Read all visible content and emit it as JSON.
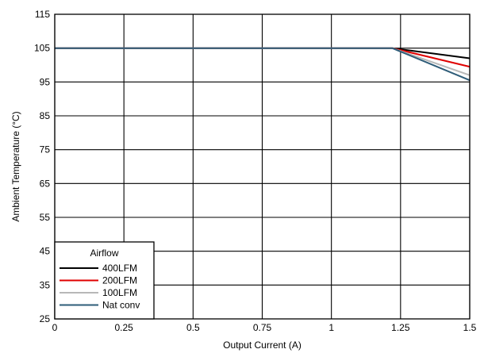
{
  "chart_data": {
    "type": "line",
    "title": "",
    "xlabel": "Output Current (A)",
    "ylabel": "Ambient Temperature (°C)",
    "xlim": [
      0,
      1.5
    ],
    "ylim": [
      25,
      115
    ],
    "xticks": [
      0,
      0.25,
      0.5,
      0.75,
      1,
      1.25,
      1.5
    ],
    "xtick_labels": [
      "0",
      "0.25",
      "0.5",
      "0.75",
      "1",
      "1.25",
      "1.5"
    ],
    "yticks": [
      25,
      35,
      45,
      55,
      65,
      75,
      85,
      95,
      105,
      115
    ],
    "ytick_labels": [
      "25",
      "35",
      "45",
      "55",
      "65",
      "75",
      "85",
      "95",
      "105",
      "115"
    ],
    "grid": true,
    "legend": {
      "title": "Airflow",
      "placement": "bottom-left"
    },
    "series": [
      {
        "name": "400LFM",
        "color": "#000000",
        "x": [
          0,
          1.22,
          1.5
        ],
        "y": [
          105,
          105,
          102
        ]
      },
      {
        "name": "200LFM",
        "color": "#e00000",
        "x": [
          0,
          1.22,
          1.5
        ],
        "y": [
          105,
          105,
          99.5
        ]
      },
      {
        "name": "100LFM",
        "color": "#b8b8b8",
        "x": [
          0,
          1.22,
          1.5
        ],
        "y": [
          105,
          105,
          97
        ]
      },
      {
        "name": "Nat conv",
        "color": "#2e5c78",
        "x": [
          0,
          1.22,
          1.5
        ],
        "y": [
          105,
          105,
          95.5
        ]
      }
    ]
  }
}
